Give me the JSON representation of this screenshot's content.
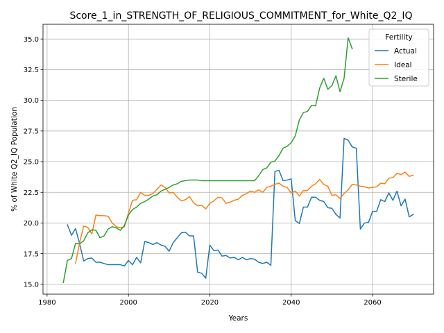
{
  "chart_data": {
    "type": "line",
    "title": "Score_1_in_STRENGTH_OF_RELIGIOUS_COMMITMENT_for_White_Q2_IQ",
    "xlabel": "Years",
    "ylabel": "% of White Q2_IQ Population",
    "xlim": [
      1979,
      2075
    ],
    "ylim": [
      14.2,
      36.2
    ],
    "xticks": [
      1980,
      2000,
      2020,
      2040,
      2060
    ],
    "yticks": [
      15.0,
      17.5,
      20.0,
      22.5,
      25.0,
      27.5,
      30.0,
      32.5,
      35.0
    ],
    "grid": true,
    "legend": {
      "title": "Fertility",
      "placement": "top-right"
    },
    "series": [
      {
        "name": "Actual",
        "color": "#1f77b4",
        "x": [
          1985,
          1986,
          1987,
          1988,
          1989,
          1990,
          1991,
          1992,
          1993,
          1994,
          1995,
          1996,
          1997,
          1998,
          1999,
          2000,
          2001,
          2002,
          2003,
          2004,
          2005,
          2006,
          2007,
          2008,
          2009,
          2010,
          2011,
          2012,
          2013,
          2014,
          2015,
          2016,
          2017,
          2018,
          2019,
          2020,
          2021,
          2022,
          2023,
          2024,
          2025,
          2026,
          2027,
          2028,
          2029,
          2030,
          2031,
          2032,
          2033,
          2034,
          2035,
          2036,
          2037,
          2038,
          2039,
          2040,
          2041,
          2042,
          2043,
          2044,
          2045,
          2046,
          2047,
          2048,
          2049,
          2050,
          2051,
          2052,
          2053,
          2054,
          2055,
          2056,
          2057,
          2058,
          2059,
          2060,
          2061,
          2062,
          2063,
          2064,
          2065,
          2066,
          2067,
          2068,
          2069,
          2070
        ],
        "y": [
          19.85,
          19.0,
          19.55,
          18.3,
          16.9,
          17.1,
          17.15,
          16.8,
          16.8,
          16.7,
          16.6,
          16.6,
          16.6,
          16.6,
          16.5,
          16.95,
          16.6,
          17.2,
          16.75,
          18.5,
          18.4,
          18.25,
          18.4,
          18.2,
          18.1,
          17.7,
          18.4,
          18.8,
          19.2,
          19.25,
          18.95,
          18.95,
          16.0,
          15.9,
          15.5,
          18.2,
          17.75,
          17.8,
          17.3,
          17.35,
          17.15,
          17.2,
          17.0,
          17.2,
          17.0,
          17.1,
          17.05,
          16.8,
          16.7,
          16.8,
          16.55,
          24.2,
          24.3,
          23.45,
          23.5,
          23.6,
          20.2,
          19.95,
          21.3,
          21.3,
          22.1,
          22.1,
          21.85,
          21.75,
          21.25,
          21.2,
          20.7,
          20.4,
          26.9,
          26.75,
          26.2,
          26.1,
          19.5,
          20.0,
          20.05,
          20.95,
          20.95,
          21.9,
          21.75,
          22.45,
          21.85,
          22.6,
          21.4,
          21.95,
          20.5,
          20.7
        ]
      },
      {
        "name": "Ideal",
        "color": "#ff7f0e",
        "x": [
          1987,
          1988,
          1989,
          1990,
          1991,
          1992,
          1993,
          1994,
          1995,
          1996,
          1997,
          1998,
          1999,
          2000,
          2001,
          2002,
          2003,
          2004,
          2005,
          2006,
          2007,
          2008,
          2009,
          2010,
          2011,
          2012,
          2013,
          2014,
          2015,
          2016,
          2017,
          2018,
          2019,
          2020,
          2021,
          2022,
          2023,
          2024,
          2025,
          2026,
          2027,
          2028,
          2029,
          2030,
          2031,
          2032,
          2033,
          2034,
          2035,
          2036,
          2037,
          2038,
          2039,
          2040,
          2041,
          2042,
          2043,
          2044,
          2045,
          2046,
          2047,
          2048,
          2049,
          2050,
          2051,
          2052,
          2053,
          2054,
          2055,
          2056,
          2057,
          2058,
          2059,
          2060,
          2061,
          2062,
          2063,
          2064,
          2065,
          2066,
          2067,
          2068,
          2069,
          2070
        ],
        "y": [
          16.7,
          18.4,
          19.75,
          19.65,
          19.1,
          20.65,
          20.6,
          20.6,
          20.55,
          20.0,
          19.7,
          19.6,
          19.7,
          20.8,
          21.85,
          21.9,
          22.5,
          22.25,
          22.25,
          22.4,
          22.75,
          23.1,
          22.9,
          22.45,
          22.5,
          22.1,
          21.8,
          21.9,
          22.15,
          21.65,
          21.4,
          21.45,
          21.15,
          21.6,
          21.8,
          22.1,
          22.05,
          21.6,
          21.7,
          21.85,
          21.95,
          22.25,
          22.4,
          22.6,
          22.5,
          22.7,
          22.5,
          22.9,
          23.0,
          23.15,
          23.25,
          23.0,
          22.9,
          22.45,
          22.6,
          22.2,
          22.65,
          22.65,
          23.0,
          23.2,
          23.55,
          23.15,
          23.0,
          22.25,
          22.3,
          22.0,
          22.4,
          22.7,
          23.15,
          23.1,
          23.0,
          22.95,
          22.85,
          22.9,
          22.95,
          23.25,
          23.2,
          23.65,
          23.7,
          24.05,
          23.95,
          24.15,
          23.8,
          23.9
        ]
      },
      {
        "name": "Sterile",
        "color": "#2ca02c",
        "x": [
          1984,
          1985,
          1986,
          1987,
          1988,
          1989,
          1990,
          1991,
          1992,
          1993,
          1994,
          1995,
          1996,
          1997,
          1998,
          1999,
          2000,
          2001,
          2002,
          2003,
          2004,
          2005,
          2006,
          2007,
          2008,
          2009,
          2010,
          2011,
          2012,
          2013,
          2014,
          2015,
          2016,
          2017,
          2018,
          2019,
          2020,
          2021,
          2022,
          2023,
          2024,
          2025,
          2026,
          2027,
          2028,
          2029,
          2030,
          2031,
          2032,
          2033,
          2034,
          2035,
          2036,
          2037,
          2038,
          2039,
          2040,
          2041,
          2042,
          2043,
          2044,
          2045,
          2046,
          2047,
          2048,
          2049,
          2050,
          2051,
          2052,
          2053,
          2054,
          2055
        ],
        "y": [
          15.15,
          16.95,
          17.1,
          18.35,
          18.3,
          18.55,
          19.2,
          19.45,
          19.4,
          18.8,
          18.95,
          19.5,
          19.7,
          19.6,
          19.4,
          19.8,
          20.65,
          21.1,
          21.3,
          21.6,
          21.75,
          21.95,
          22.2,
          22.3,
          22.6,
          22.75,
          22.9,
          23.1,
          23.2,
          23.4,
          23.45,
          23.5,
          23.5,
          23.5,
          23.45,
          23.45,
          23.45,
          23.45,
          23.45,
          23.45,
          23.45,
          23.45,
          23.45,
          23.45,
          23.45,
          23.45,
          23.45,
          23.45,
          23.85,
          24.35,
          24.5,
          24.95,
          25.05,
          25.5,
          26.1,
          26.25,
          26.55,
          27.1,
          28.4,
          29.0,
          29.1,
          29.6,
          29.55,
          31.0,
          31.8,
          30.9,
          31.2,
          32.0,
          30.7,
          31.8,
          35.1,
          34.2
        ]
      }
    ]
  }
}
